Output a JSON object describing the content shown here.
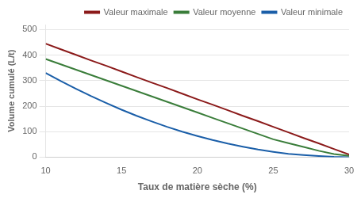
{
  "chart_data": {
    "type": "line",
    "xlabel": "Taux de matière sèche (%)",
    "ylabel": "Volume cumulé (L/t)",
    "x": [
      10,
      11,
      12,
      13,
      14,
      15,
      16,
      17,
      18,
      19,
      20,
      21,
      22,
      23,
      24,
      25,
      26,
      27,
      28,
      29,
      30
    ],
    "series": [
      {
        "name": "Valeur maximale",
        "color": "#8B1A1A",
        "values": [
          445,
          423,
          401,
          379,
          358,
          336,
          314,
          292,
          271,
          249,
          227,
          206,
          184,
          162,
          141,
          119,
          97,
          75,
          54,
          32,
          10
        ]
      },
      {
        "name": "Valeur moyenne",
        "color": "#3A7D3A",
        "values": [
          385,
          364,
          343,
          322,
          301,
          280,
          259,
          238,
          217,
          196,
          175,
          154,
          133,
          112,
          91,
          70,
          55,
          40,
          25,
          12,
          5
        ]
      },
      {
        "name": "Valeur minimale",
        "color": "#1A5EA8",
        "values": [
          330,
          298,
          268,
          239,
          212,
          186,
          162,
          140,
          119,
          100,
          83,
          67,
          53,
          41,
          30,
          21,
          13,
          8,
          4,
          1,
          0
        ]
      }
    ],
    "xlim": [
      10,
      30
    ],
    "xticks": [
      10,
      15,
      20,
      25,
      30
    ],
    "ylim": [
      0,
      520
    ],
    "yticks": [
      0,
      100,
      200,
      300,
      400,
      500
    ],
    "grid": "y",
    "legend": "upper right"
  }
}
